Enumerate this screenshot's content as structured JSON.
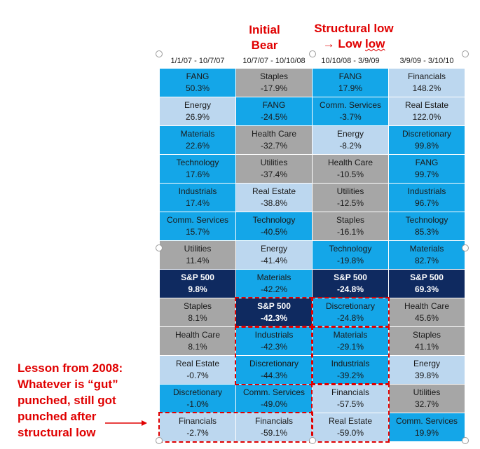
{
  "annotations": {
    "initial_l1": "Initial",
    "initial_l2": "Bear",
    "structural_l1": "Structural low",
    "structural_l2_arrow": "→ Low ",
    "structural_l2_low": "low",
    "lesson_lines": [
      "Lesson from 2008:",
      "Whatever is “gut”",
      "punched, still got",
      "punched after",
      "structural low"
    ]
  },
  "colors": {
    "bright": "#14a6e8",
    "light": "#bcd7ef",
    "gray": "#a6a6a6",
    "navy": "#0f2a60",
    "annotation": "#e00000"
  },
  "chart_data": {
    "type": "table",
    "columns": [
      "1/1/07 - 10/7/07",
      "10/7/07 - 10/10/08",
      "10/10/08 - 3/9/09",
      "3/9/09 - 3/10/10"
    ],
    "rows": [
      [
        {
          "name": "FANG",
          "value": "50.3%",
          "style": "bright"
        },
        {
          "name": "Staples",
          "value": "-17.9%",
          "style": "gray"
        },
        {
          "name": "FANG",
          "value": "17.9%",
          "style": "bright"
        },
        {
          "name": "Financials",
          "value": "148.2%",
          "style": "light"
        }
      ],
      [
        {
          "name": "Energy",
          "value": "26.9%",
          "style": "light"
        },
        {
          "name": "FANG",
          "value": "-24.5%",
          "style": "bright"
        },
        {
          "name": "Comm. Services",
          "value": "-3.7%",
          "style": "bright"
        },
        {
          "name": "Real Estate",
          "value": "122.0%",
          "style": "light"
        }
      ],
      [
        {
          "name": "Materials",
          "value": "22.6%",
          "style": "bright"
        },
        {
          "name": "Health Care",
          "value": "-32.7%",
          "style": "gray"
        },
        {
          "name": "Energy",
          "value": "-8.2%",
          "style": "light"
        },
        {
          "name": "Discretionary",
          "value": "99.8%",
          "style": "bright"
        }
      ],
      [
        {
          "name": "Technology",
          "value": "17.6%",
          "style": "bright"
        },
        {
          "name": "Utilities",
          "value": "-37.4%",
          "style": "gray"
        },
        {
          "name": "Health Care",
          "value": "-10.5%",
          "style": "gray"
        },
        {
          "name": "FANG",
          "value": "99.7%",
          "style": "bright"
        }
      ],
      [
        {
          "name": "Industrials",
          "value": "17.4%",
          "style": "bright"
        },
        {
          "name": "Real Estate",
          "value": "-38.8%",
          "style": "light"
        },
        {
          "name": "Utilities",
          "value": "-12.5%",
          "style": "gray"
        },
        {
          "name": "Industrials",
          "value": "96.7%",
          "style": "bright"
        }
      ],
      [
        {
          "name": "Comm. Services",
          "value": "15.7%",
          "style": "bright"
        },
        {
          "name": "Technology",
          "value": "-40.5%",
          "style": "bright"
        },
        {
          "name": "Staples",
          "value": "-16.1%",
          "style": "gray"
        },
        {
          "name": "Technology",
          "value": "85.3%",
          "style": "bright"
        }
      ],
      [
        {
          "name": "Utilities",
          "value": "11.4%",
          "style": "gray"
        },
        {
          "name": "Energy",
          "value": "-41.4%",
          "style": "light"
        },
        {
          "name": "Technology",
          "value": "-19.8%",
          "style": "bright"
        },
        {
          "name": "Materials",
          "value": "82.7%",
          "style": "bright"
        }
      ],
      [
        {
          "name": "S&P 500",
          "value": "9.8%",
          "style": "navy"
        },
        {
          "name": "Materials",
          "value": "-42.2%",
          "style": "bright"
        },
        {
          "name": "S&P 500",
          "value": "-24.8%",
          "style": "navy"
        },
        {
          "name": "S&P 500",
          "value": "69.3%",
          "style": "navy"
        }
      ],
      [
        {
          "name": "Staples",
          "value": "8.1%",
          "style": "gray"
        },
        {
          "name": "S&P 500",
          "value": "-42.3%",
          "style": "navy"
        },
        {
          "name": "Discretionary",
          "value": "-24.8%",
          "style": "bright"
        },
        {
          "name": "Health Care",
          "value": "45.6%",
          "style": "gray"
        }
      ],
      [
        {
          "name": "Health Care",
          "value": "8.1%",
          "style": "gray"
        },
        {
          "name": "Industrials",
          "value": "-42.3%",
          "style": "bright"
        },
        {
          "name": "Materials",
          "value": "-29.1%",
          "style": "bright"
        },
        {
          "name": "Staples",
          "value": "41.1%",
          "style": "gray"
        }
      ],
      [
        {
          "name": "Real Estate",
          "value": "-0.7%",
          "style": "light"
        },
        {
          "name": "Discretionary",
          "value": "-44.3%",
          "style": "bright"
        },
        {
          "name": "Industrials",
          "value": "-39.2%",
          "style": "bright"
        },
        {
          "name": "Energy",
          "value": "39.8%",
          "style": "light"
        }
      ],
      [
        {
          "name": "Discretionary",
          "value": "-1.0%",
          "style": "bright"
        },
        {
          "name": "Comm. Services",
          "value": "-49.0%",
          "style": "bright"
        },
        {
          "name": "Financials",
          "value": "-57.5%",
          "style": "light"
        },
        {
          "name": "Utilities",
          "value": "32.7%",
          "style": "gray"
        }
      ],
      [
        {
          "name": "Financials",
          "value": "-2.7%",
          "style": "light"
        },
        {
          "name": "Financials",
          "value": "-59.1%",
          "style": "light"
        },
        {
          "name": "Real Estate",
          "value": "-59.0%",
          "style": "light"
        },
        {
          "name": "Comm. Services",
          "value": "19.9%",
          "style": "bright"
        }
      ]
    ]
  }
}
